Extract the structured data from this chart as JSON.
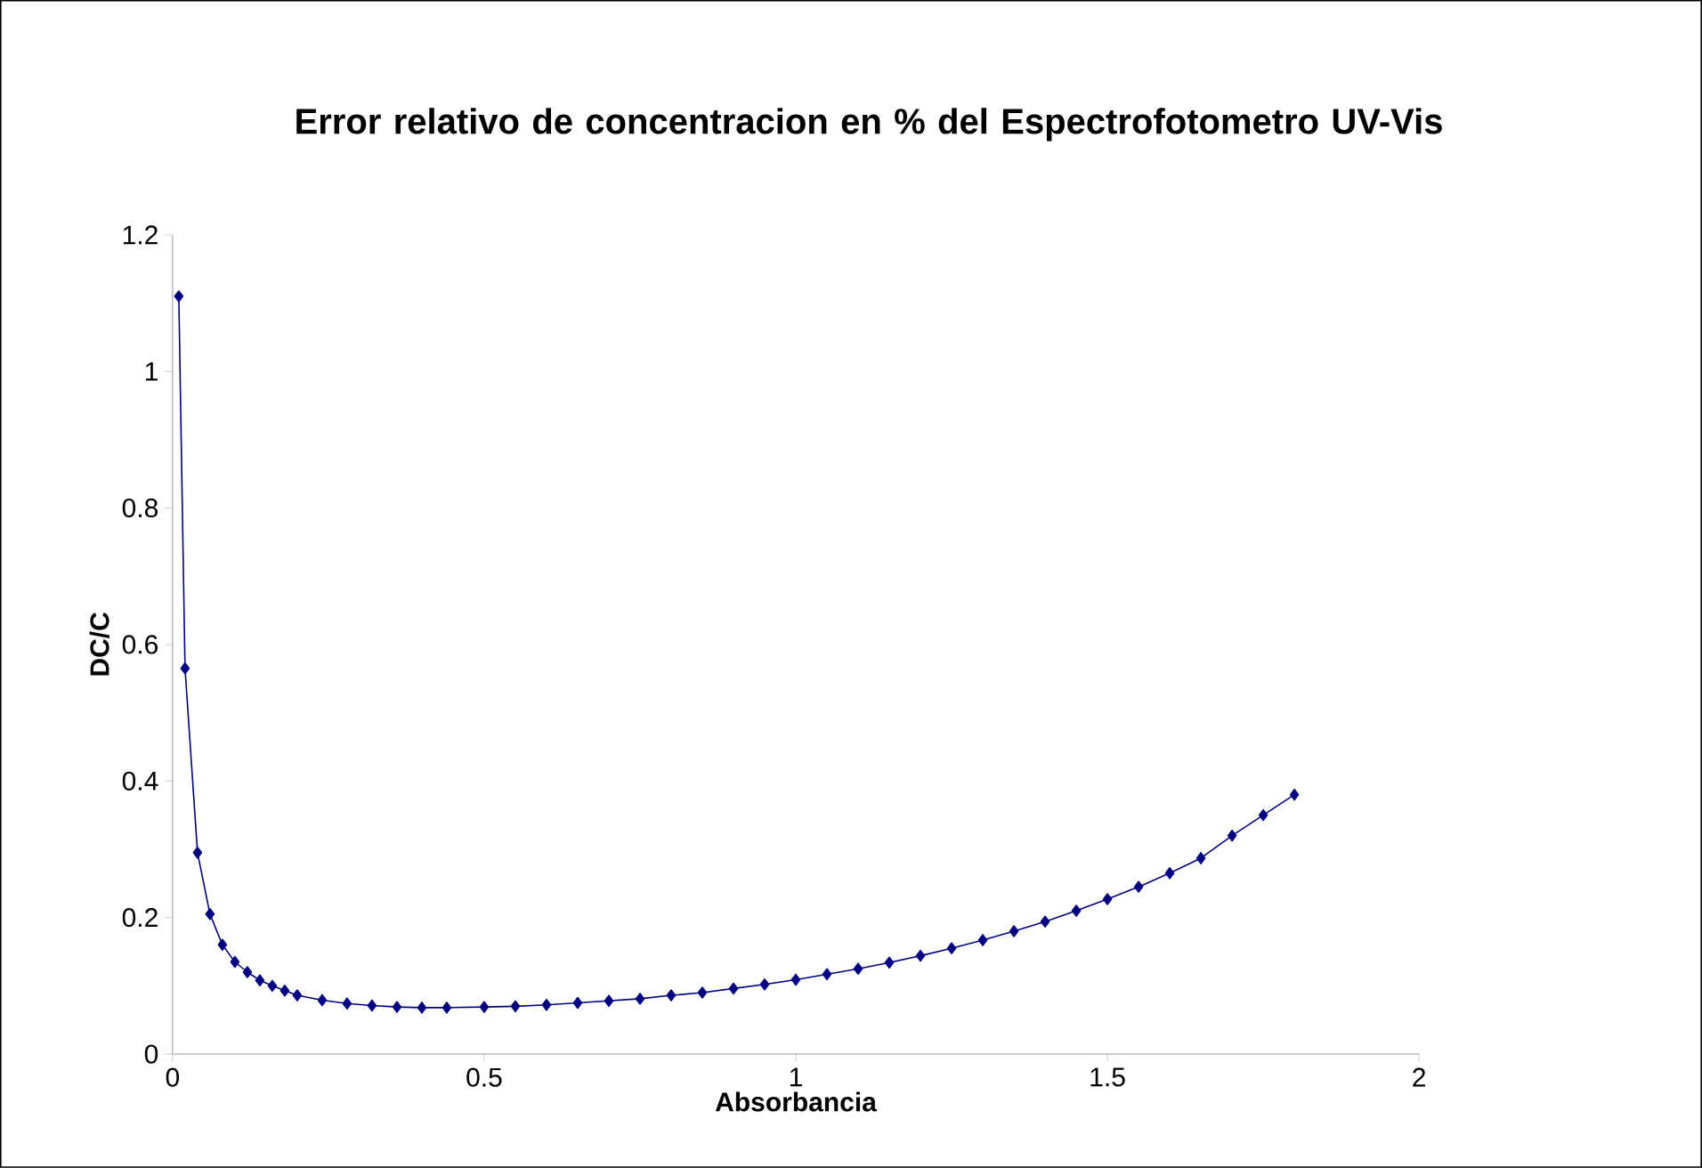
{
  "chart_data": {
    "type": "line",
    "title": "Error relativo de concentracion en % del Espectrofotometro UV-Vis",
    "xlabel": "Absorbancia",
    "ylabel": "DC/C",
    "marker": "diamond",
    "xlim": [
      0,
      2
    ],
    "xticks": [
      0,
      0.5,
      1,
      1.5,
      2
    ],
    "ylim": [
      0,
      1.2
    ],
    "yticks": [
      0,
      0.2,
      0.4,
      0.6,
      0.8,
      1,
      1.2
    ],
    "series": [
      {
        "color": "#000080",
        "x": [
          0.01,
          0.02,
          0.04,
          0.06,
          0.08,
          0.1,
          0.12,
          0.14,
          0.16,
          0.18,
          0.2,
          0.24,
          0.28,
          0.32,
          0.36,
          0.4,
          0.44,
          0.5,
          0.55,
          0.6,
          0.65,
          0.7,
          0.75,
          0.8,
          0.85,
          0.9,
          0.95,
          1.0,
          1.05,
          1.1,
          1.15,
          1.2,
          1.25,
          1.3,
          1.35,
          1.4,
          1.45,
          1.5,
          1.55,
          1.6,
          1.65,
          1.7,
          1.75,
          1.8
        ],
        "values": [
          1.11,
          0.565,
          0.295,
          0.205,
          0.16,
          0.135,
          0.12,
          0.108,
          0.1,
          0.093,
          0.086,
          0.079,
          0.074,
          0.071,
          0.069,
          0.068,
          0.068,
          0.069,
          0.07,
          0.072,
          0.075,
          0.078,
          0.081,
          0.086,
          0.09,
          0.096,
          0.102,
          0.109,
          0.117,
          0.125,
          0.134,
          0.144,
          0.155,
          0.167,
          0.18,
          0.194,
          0.21,
          0.227,
          0.245,
          0.265,
          0.287,
          0.32,
          0.35,
          0.38
        ]
      }
    ]
  }
}
